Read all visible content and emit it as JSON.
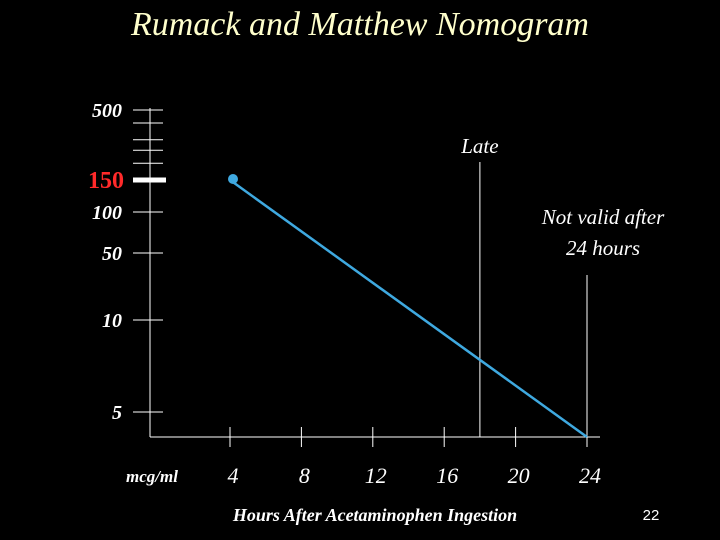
{
  "slide": {
    "title": "Rumack and Matthew Nomogram",
    "number": "22"
  },
  "chart_data": {
    "type": "line",
    "title": "Rumack and Matthew Nomogram",
    "xlabel": "Hours After Acetaminophen Ingestion",
    "ylabel": "mcg/ml",
    "x_ticks": [
      "4",
      "8",
      "12",
      "16",
      "20",
      "24"
    ],
    "y_labels": [
      {
        "value": 500,
        "text": "500",
        "emphasis": false
      },
      {
        "value": 150,
        "text": "150",
        "emphasis": true
      },
      {
        "value": 100,
        "text": "100",
        "emphasis": false
      },
      {
        "value": 50,
        "text": "50",
        "emphasis": false
      },
      {
        "value": 10,
        "text": "10",
        "emphasis": false
      },
      {
        "value": 5,
        "text": "5",
        "emphasis": false
      }
    ],
    "y_minor_ticks": [
      400,
      300,
      250,
      200
    ],
    "xlim": [
      0,
      24
    ],
    "series": [
      {
        "x": [
          4,
          24
        ],
        "y": [
          150,
          4.7
        ],
        "color": "#3fa9e0",
        "marker_start": true
      }
    ],
    "annotations": [
      {
        "text": "Late",
        "x": 18
      },
      {
        "text": "Not valid after\n24 hours",
        "x": 24
      }
    ],
    "colors": {
      "title": "#ffffcc",
      "text": "#ffffff",
      "emphasis": "#ff2a2a",
      "line": "#3fa9e0",
      "axis": "#ffffff"
    }
  }
}
